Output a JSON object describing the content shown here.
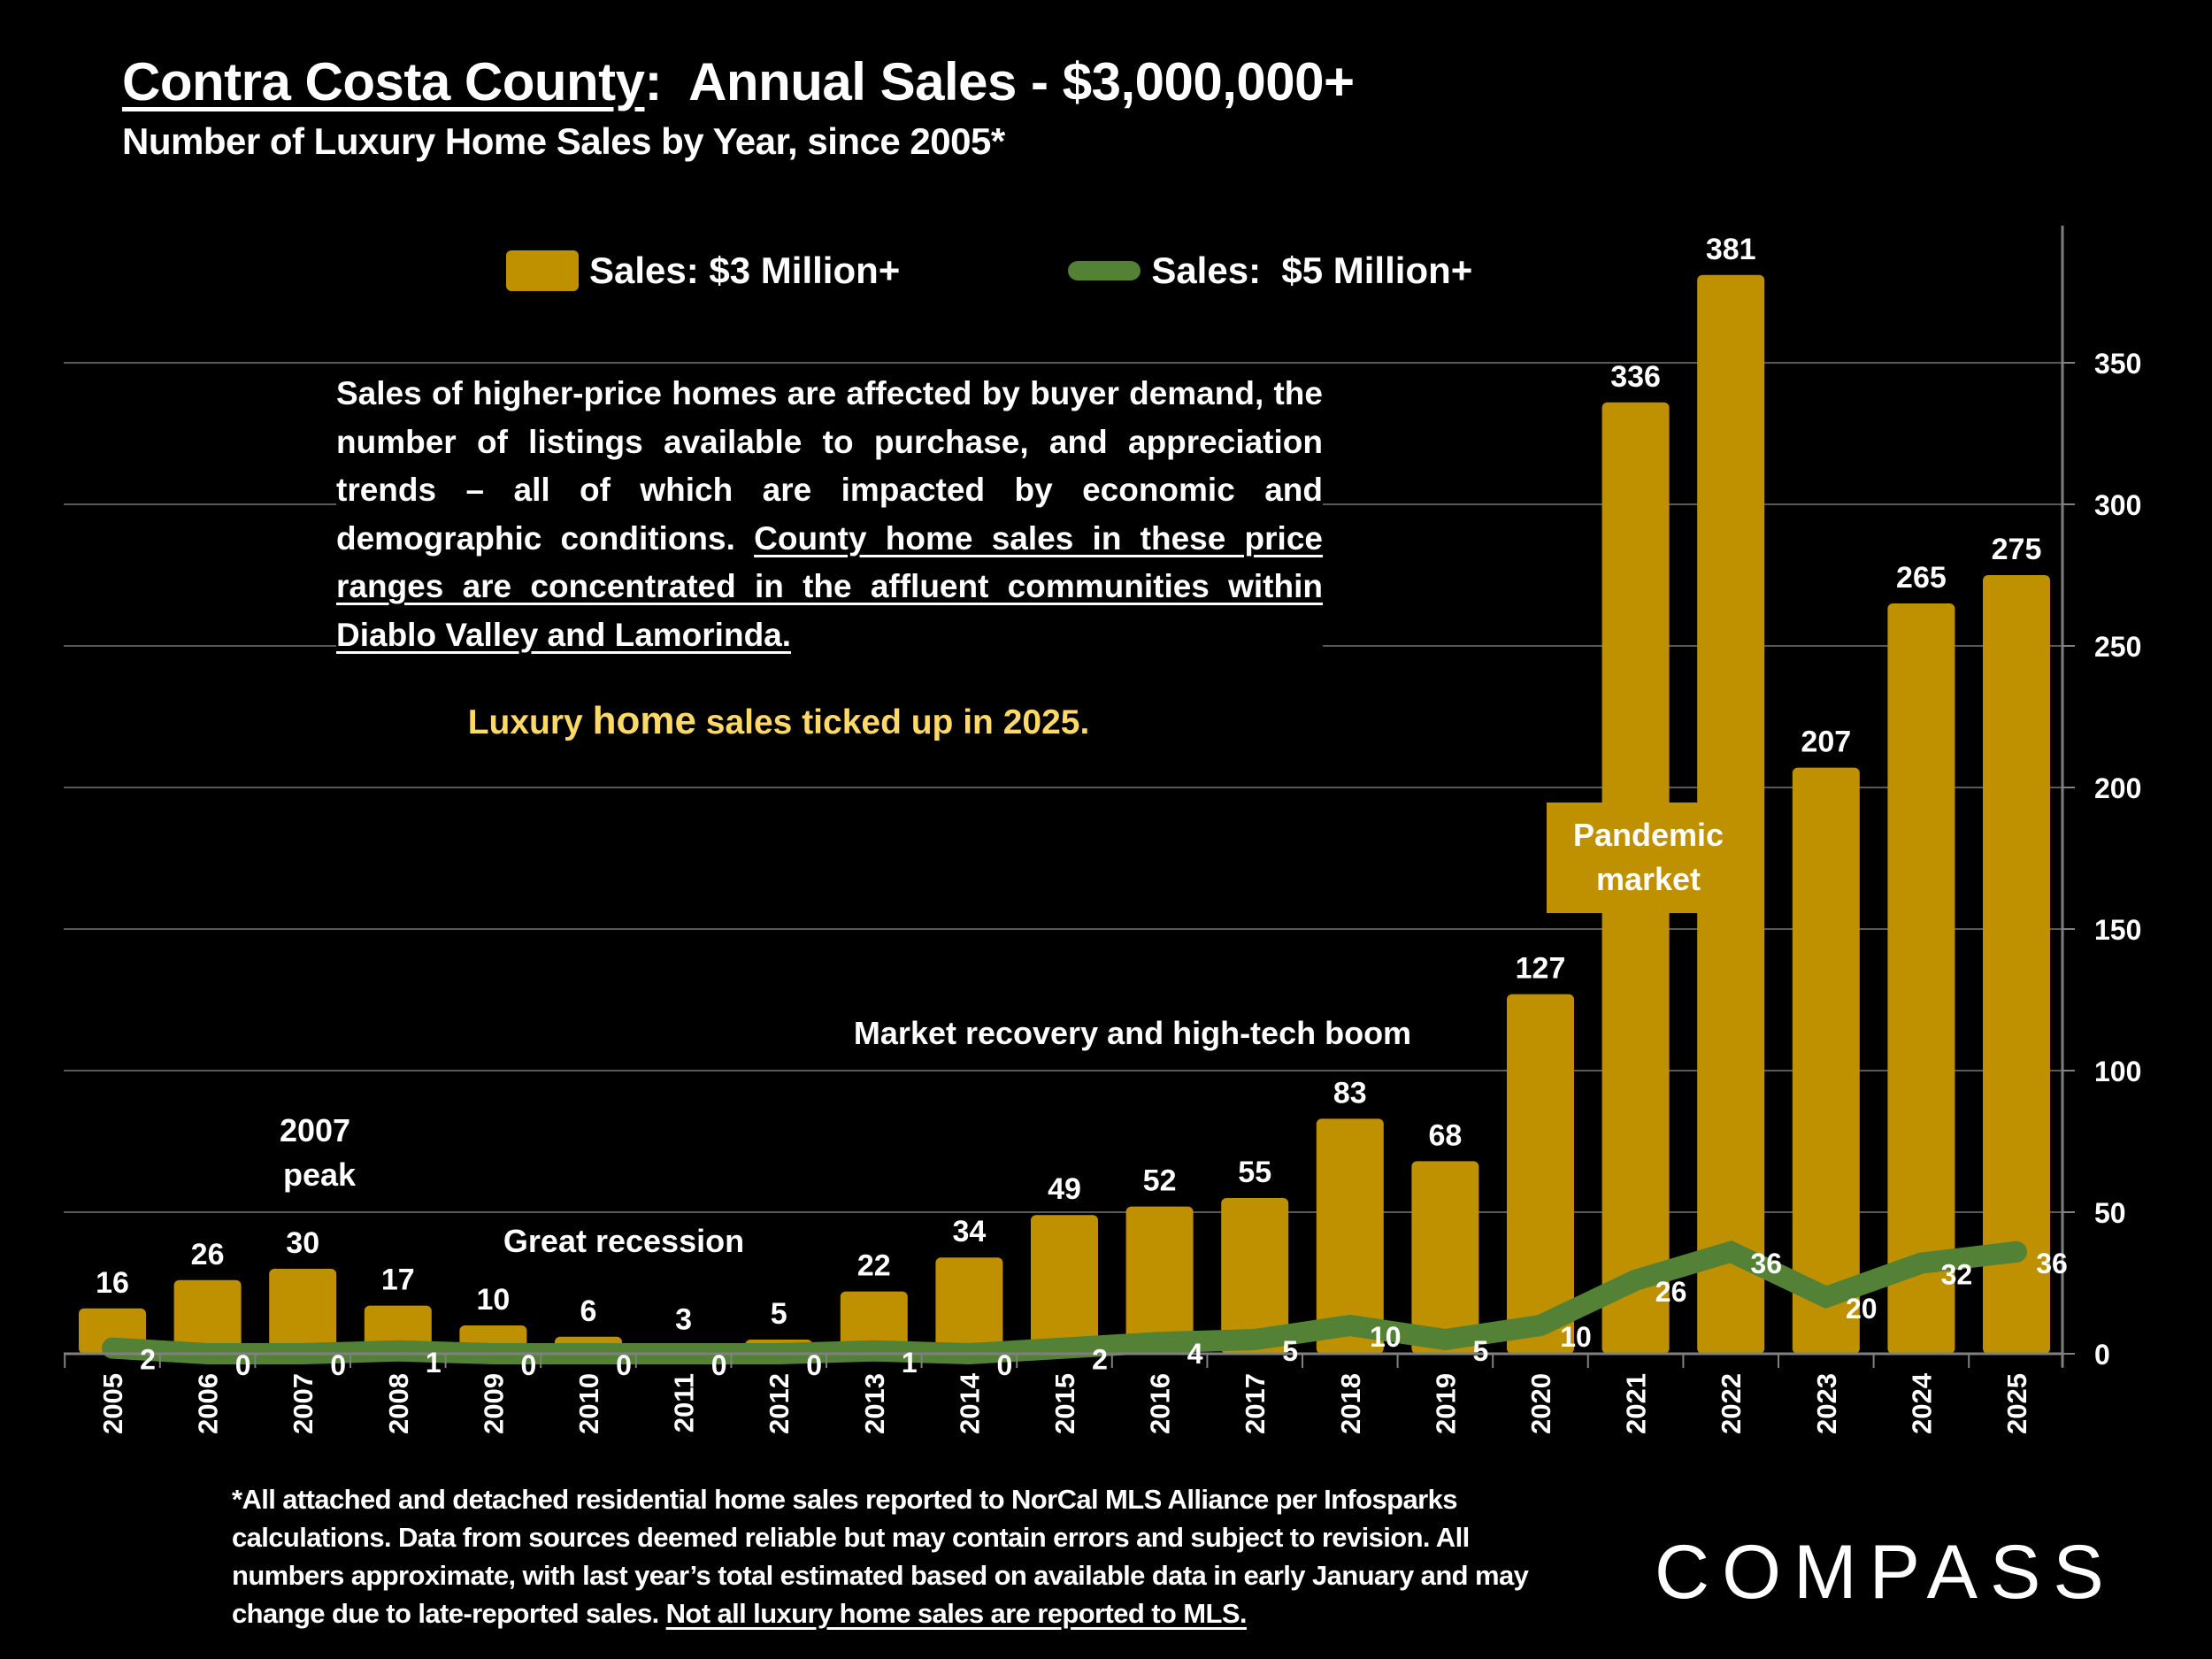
{
  "header": {
    "title_underlined": "Contra Costa County",
    "title_rest": ":  Annual Sales - $3,000,000+",
    "subtitle": "Number of Luxury Home Sales by Year, since 2005*"
  },
  "note": {
    "plain": "Sales of higher-price homes are affected by buyer demand, the number of listings available to purchase, and appreciation trends – all of which are impacted by economic and demographic conditions. ",
    "underlined": "County home sales in these price ranges are concentrated in the affluent communities within Diablo Valley and Lamorinda."
  },
  "highlight": {
    "part1": "Luxury ",
    "part2": "home",
    "part3": " sales ticked up in 2025."
  },
  "footnote": {
    "plain": "*All attached and detached residential home sales reported to NorCal MLS Alliance per Infosparks calculations. Data from sources deemed reliable but may contain errors and subject to revision. All numbers approximate, with last year’s total estimated based on available data in early January and may change due to late-reported sales. ",
    "underlined": "Not all luxury home sales are reported to MLS."
  },
  "logo": "COMPASS",
  "colors": {
    "bar": "#BF9000",
    "line": "#538135",
    "highlight_text": "#FFD966",
    "background": "#000000",
    "gridline": "#595959",
    "axis": "#808080"
  },
  "chart_data": {
    "type": "bar",
    "title": "Contra Costa County: Annual Sales - $3,000,000+",
    "subtitle": "Number of Luxury Home Sales by Year, since 2005*",
    "xlabel": "",
    "ylabel": "",
    "categories": [
      "2005",
      "2006",
      "2007",
      "2008",
      "2009",
      "2010",
      "2011",
      "2012",
      "2013",
      "2014",
      "2015",
      "2016",
      "2017",
      "2018",
      "2019",
      "2020",
      "2021",
      "2022",
      "2023",
      "2024",
      "2025"
    ],
    "series": [
      {
        "name": "Sales: $3 Million+",
        "type": "bar",
        "values": [
          16,
          26,
          30,
          17,
          10,
          6,
          3,
          5,
          22,
          34,
          49,
          52,
          55,
          83,
          68,
          127,
          336,
          381,
          207,
          265,
          275
        ]
      },
      {
        "name": "Sales:  $5 Million+",
        "type": "line",
        "values": [
          2,
          0,
          0,
          1,
          0,
          0,
          0,
          0,
          1,
          0,
          2,
          4,
          5,
          10,
          5,
          10,
          26,
          36,
          20,
          32,
          36
        ]
      }
    ],
    "ylim": [
      0,
      400
    ],
    "yticks": [
      0,
      50,
      100,
      150,
      200,
      250,
      300,
      350
    ],
    "y_axis_side": "right",
    "grid": true,
    "legend": {
      "placement": "top-center",
      "entries": [
        "Sales: $3 Million+",
        "Sales:  $5 Million+"
      ]
    },
    "annotations": [
      {
        "text": "2007 peak",
        "near": "2007"
      },
      {
        "text": "Great recession",
        "near": "2010"
      },
      {
        "text": "Market recovery and high-tech boom",
        "near": "2016"
      },
      {
        "text": "Pandemic market",
        "near": "2021-2022"
      }
    ]
  }
}
